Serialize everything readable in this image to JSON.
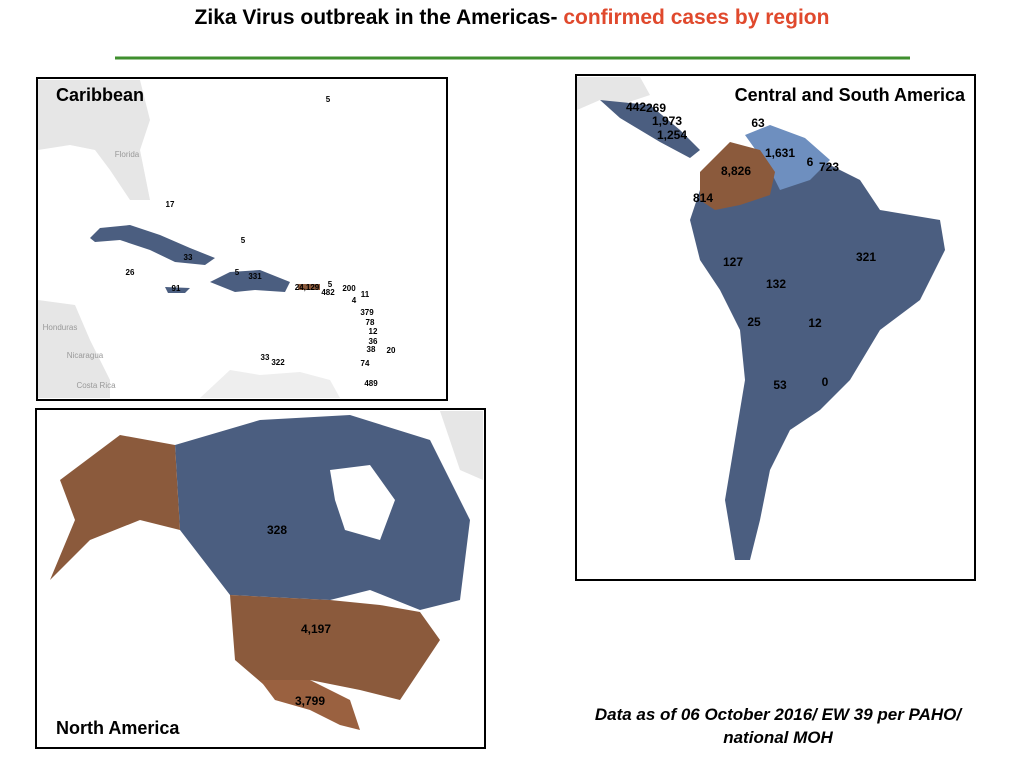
{
  "title": {
    "text": "Zika Virus outbreak in the Americas- ",
    "highlight": "confirmed cases by region"
  },
  "panels": {
    "caribbean": {
      "title": "Caribbean",
      "places": [
        "Florida",
        "Honduras",
        "Nicaragua",
        "Costa Rica"
      ],
      "labels": [
        "5",
        "17",
        "5",
        "33",
        "26",
        "5",
        "331",
        "91",
        "24,129",
        "5",
        "200",
        "482",
        "4",
        "11",
        "379",
        "78",
        "12",
        "36",
        "38",
        "20",
        "33",
        "322",
        "74",
        "489"
      ]
    },
    "central_south": {
      "title": "Central and South America",
      "labels": [
        "442",
        "269",
        "1,973",
        "1,254",
        "63",
        "1,631",
        "8,826",
        "6",
        "723",
        "814",
        "321",
        "127",
        "132",
        "25",
        "12",
        "53",
        "0"
      ]
    },
    "north_america": {
      "title": "North America",
      "labels": [
        "328",
        "4,197",
        "3,799"
      ]
    }
  },
  "note": [
    "Data as of 06 October 2016/ EW 39 per PAHO/",
    "national MOH"
  ]
}
